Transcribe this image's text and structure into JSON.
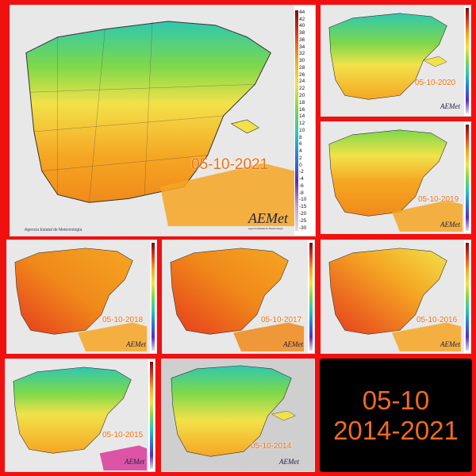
{
  "title": "05-10",
  "subtitle": "2014-2021",
  "colors": {
    "background": "#f01010",
    "summary_bg": "#000000",
    "summary_text": "#f26a1b",
    "date_text": "#f07010",
    "sea": "#e8e8e8",
    "cool": "#2ec8b0",
    "green": "#7ed84a",
    "yellow": "#f2e24a",
    "orange": "#f5a623",
    "red": "#e53a1e"
  },
  "agency_name": "Agencia Estatal de Meteorología",
  "logo_text": "AEMet",
  "logo_sub": "Agencia Estatal de Meteorología",
  "scale_labels": [
    "44",
    "42",
    "40",
    "38",
    "36",
    "34",
    "32",
    "30",
    "28",
    "26",
    "24",
    "22",
    "20",
    "18",
    "16",
    "14",
    "12",
    "10",
    "8",
    "6",
    "4",
    "2",
    "0",
    "-2",
    "-4",
    "-6",
    "-8",
    "-10",
    "-15",
    "-20",
    "-25",
    "-30"
  ],
  "panels": [
    {
      "year": "2021",
      "date": "05-10-2021",
      "palette": "mild"
    },
    {
      "year": "2020",
      "date": "05-10-2020",
      "palette": "cool"
    },
    {
      "year": "2019",
      "date": "05-10-2019",
      "palette": "warm"
    },
    {
      "year": "2018",
      "date": "05-10-2018",
      "palette": "hot"
    },
    {
      "year": "2017",
      "date": "05-10-2017",
      "palette": "hot"
    },
    {
      "year": "2016",
      "date": "05-10-2016",
      "palette": "hot"
    },
    {
      "year": "2015",
      "date": "05-10-2015",
      "palette": "mild"
    },
    {
      "year": "2014",
      "date": "05-10-2014",
      "palette": "cool"
    }
  ]
}
